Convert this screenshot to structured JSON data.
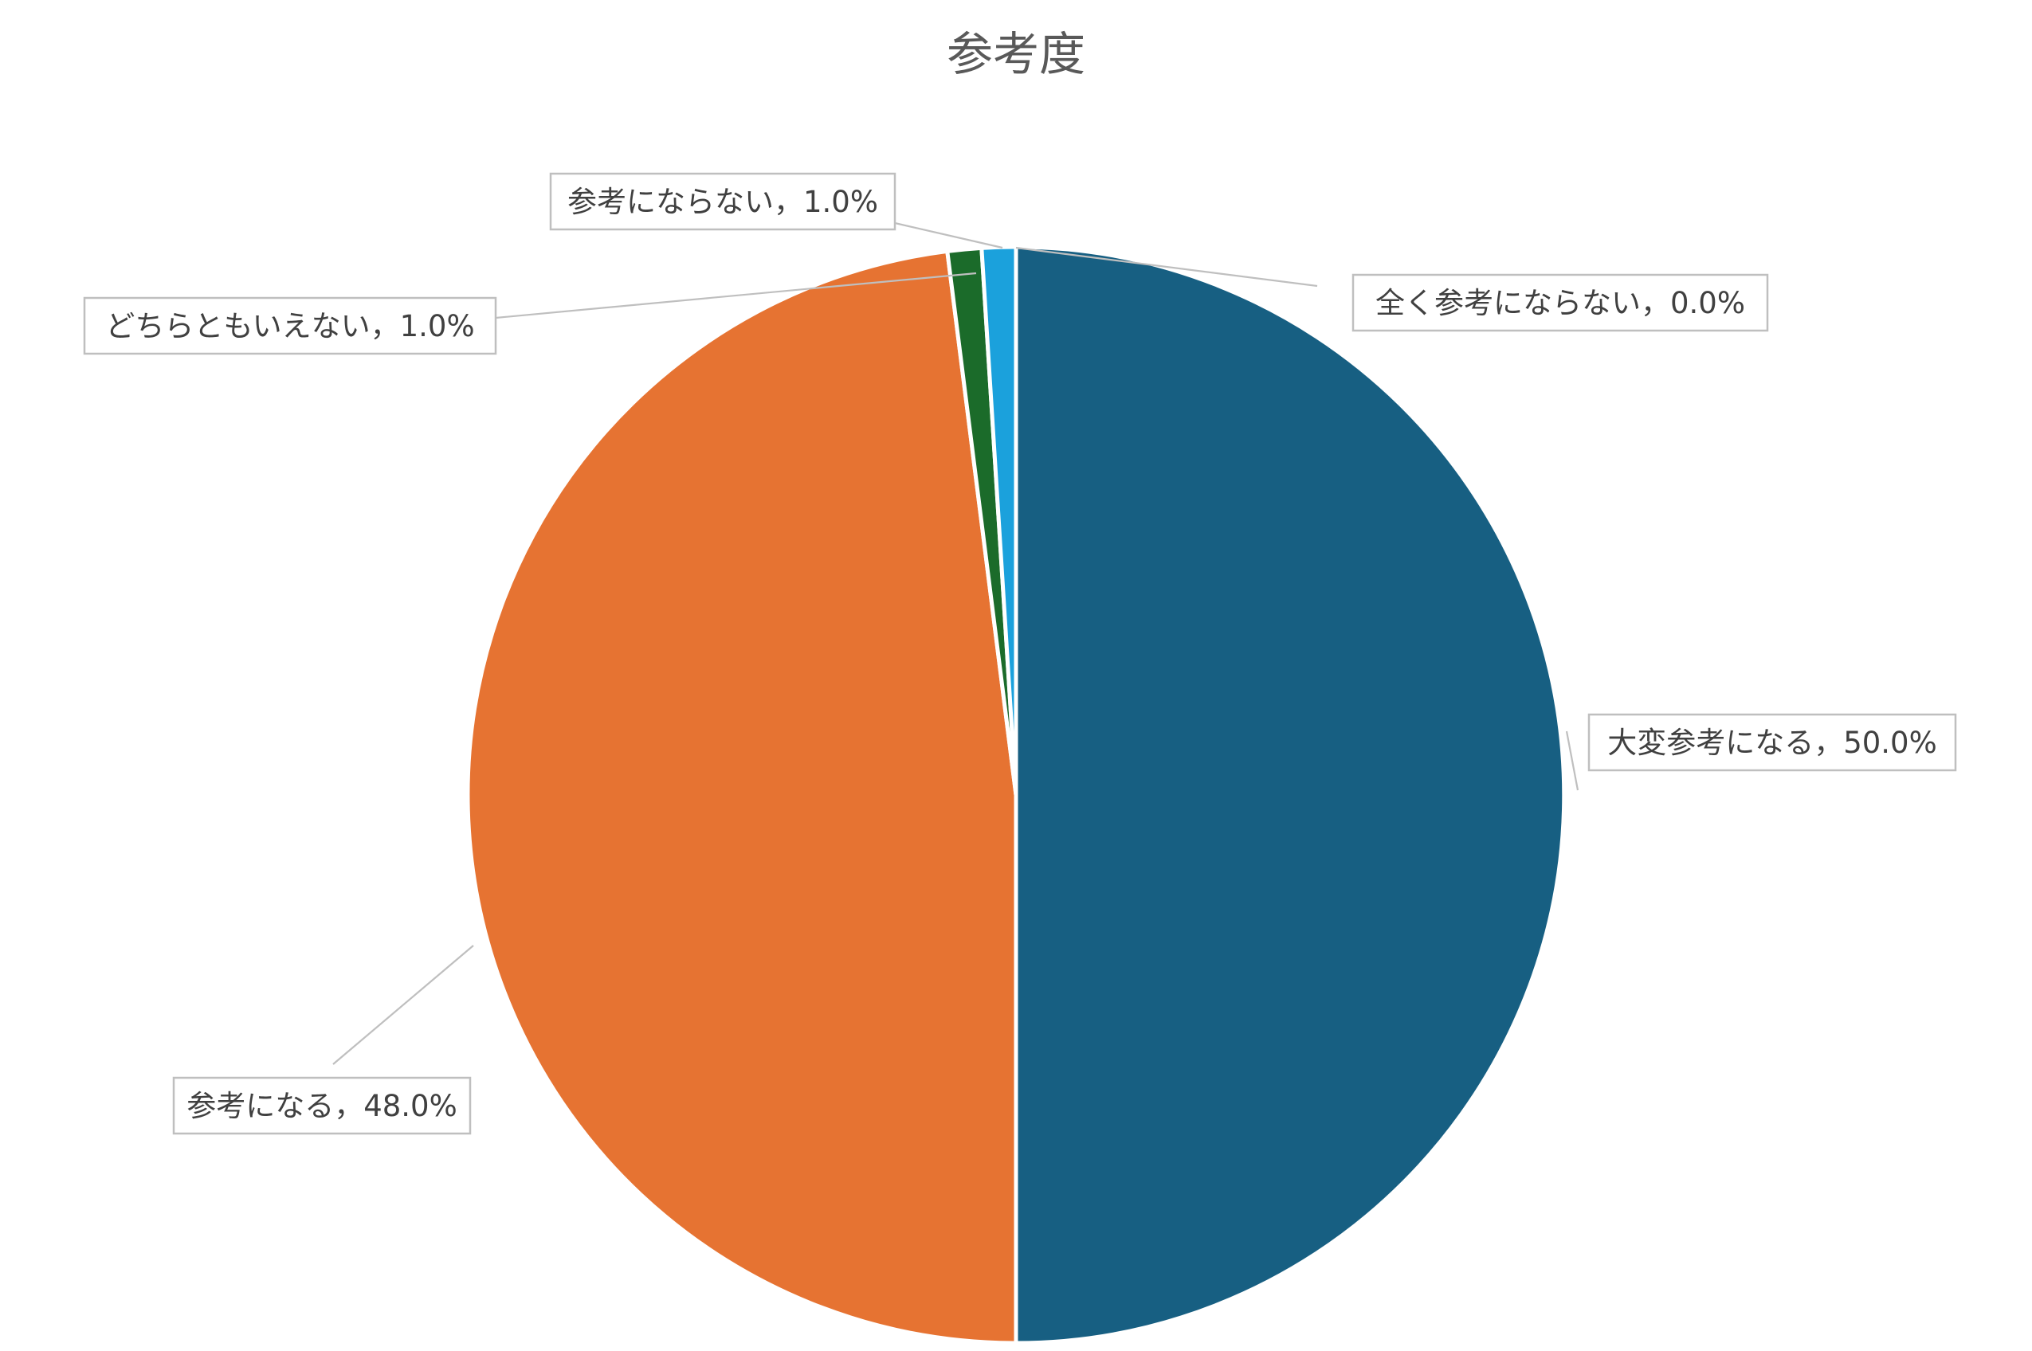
{
  "chart_data": {
    "type": "pie",
    "title": "参考度",
    "slices": [
      {
        "name": "大変参考になる",
        "value": 50.0,
        "label": "大変参考になる，50.0%",
        "color": "#175f82"
      },
      {
        "name": "参考になる",
        "value": 48.0,
        "label": "参考になる，48.0%",
        "color": "#e67332"
      },
      {
        "name": "どちらともいえない",
        "value": 1.0,
        "label": "どちらともいえない，1.0%",
        "color": "#1b6b2a"
      },
      {
        "name": "参考にならない",
        "value": 1.0,
        "label": "参考にならない，1.0%",
        "color": "#1ba1dc"
      },
      {
        "name": "全く参考にならない",
        "value": 0.0,
        "label": "全く参考にならない，0.0%",
        "color": "#8fa8b8"
      }
    ],
    "start_angle_deg": 0,
    "direction": "clockwise",
    "legend": "none",
    "data_labels": "outside-boxed-with-leader-lines"
  }
}
